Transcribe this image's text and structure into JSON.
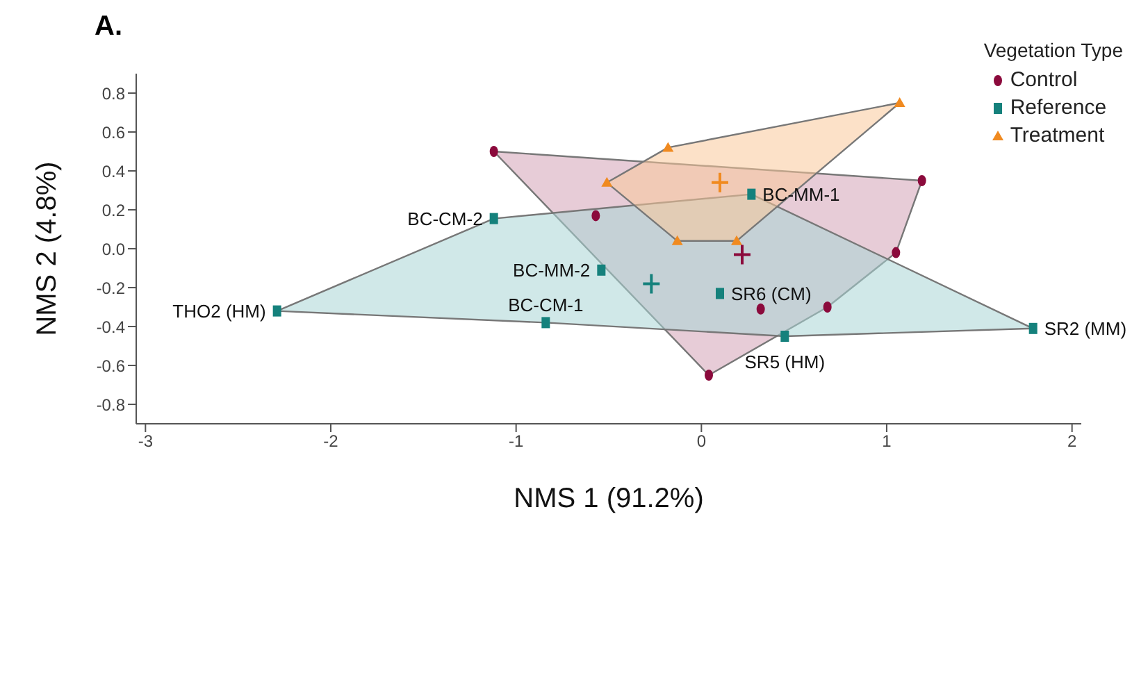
{
  "chart_data": {
    "type": "scatter",
    "title": "A.",
    "xlabel": "NMS 1 (91.2%)",
    "ylabel": "NMS 2 (4.8%)",
    "legend_title": "Vegetation Type",
    "legend": "top right",
    "grid": false,
    "xlim": [
      -3.05,
      2.05
    ],
    "xticks": [
      -3,
      -2,
      -1,
      0,
      1,
      2
    ],
    "ylim": [
      -0.9,
      0.9
    ],
    "yticks": [
      -0.8,
      -0.6,
      -0.4,
      -0.2,
      {
        "value": 0,
        "label": "0.0"
      },
      0.2,
      0.4,
      0.6,
      0.8
    ],
    "series": [
      {
        "type": "area",
        "color": "#d4a3b6",
        "x": [
          -1.12,
          1.19,
          1.05,
          0.68,
          0.04
        ],
        "values": [
          0.5,
          0.35,
          -0.02,
          -0.3,
          -0.65
        ]
      },
      {
        "type": "area",
        "color": "#a9d6d6",
        "x": [
          -2.29,
          -1.12,
          0.27,
          1.79,
          0.45,
          -0.84
        ],
        "values": [
          -0.32,
          0.155,
          0.28,
          -0.41,
          -0.45,
          -0.38
        ]
      },
      {
        "type": "area",
        "color": "#f9c89a",
        "x": [
          -0.18,
          1.07,
          0.19,
          -0.13,
          -0.51
        ],
        "values": [
          0.52,
          0.75,
          0.04,
          0.04,
          0.34
        ]
      },
      {
        "name": "Control",
        "marker": "circle",
        "color": "#8b0a3c",
        "x": [
          -1.12,
          1.19,
          -0.57,
          1.05,
          0.32,
          0.68,
          0.04
        ],
        "values": [
          0.5,
          0.35,
          0.17,
          -0.02,
          -0.31,
          -0.3,
          -0.65
        ]
      },
      {
        "name": "Reference",
        "marker": "square",
        "color": "#15817c",
        "x": [
          -1.12,
          0.27,
          -0.54,
          -2.29,
          -0.84,
          0.1,
          0.45,
          1.79
        ],
        "values": [
          0.155,
          0.28,
          -0.11,
          -0.32,
          -0.38,
          -0.23,
          -0.45,
          -0.41
        ]
      },
      {
        "name": "Treatment",
        "marker": "triangle",
        "color": "#f08a20",
        "x": [
          1.07,
          -0.18,
          -0.51,
          -0.13,
          0.19
        ],
        "values": [
          0.75,
          0.52,
          0.34,
          0.04,
          0.04
        ]
      },
      {
        "marker": "cross",
        "color": "#8b0a3c",
        "x": [
          0.22
        ],
        "values": [
          -0.03
        ]
      },
      {
        "marker": "cross",
        "color": "#15817c",
        "x": [
          -0.27
        ],
        "values": [
          -0.18
        ]
      },
      {
        "marker": "cross",
        "color": "#f08a20",
        "x": [
          0.1
        ],
        "values": [
          0.34
        ]
      }
    ],
    "annotations": [
      {
        "text": "BC-CM-2",
        "x": -1.12,
        "y": 0.155
      },
      {
        "text": "BC-MM-1",
        "x": 0.27,
        "y": 0.28
      },
      {
        "text": "BC-MM-2",
        "x": -0.54,
        "y": -0.11
      },
      {
        "text": "THO2 (HM)",
        "x": -2.29,
        "y": -0.32
      },
      {
        "text": "BC-CM-1",
        "x": -0.84,
        "y": -0.38
      },
      {
        "text": "SR6 (CM)",
        "x": 0.1,
        "y": -0.23
      },
      {
        "text": "SR5 (HM)",
        "x": 0.45,
        "y": -0.45
      },
      {
        "text": "SR2 (MM)",
        "x": 1.79,
        "y": -0.41
      }
    ]
  }
}
